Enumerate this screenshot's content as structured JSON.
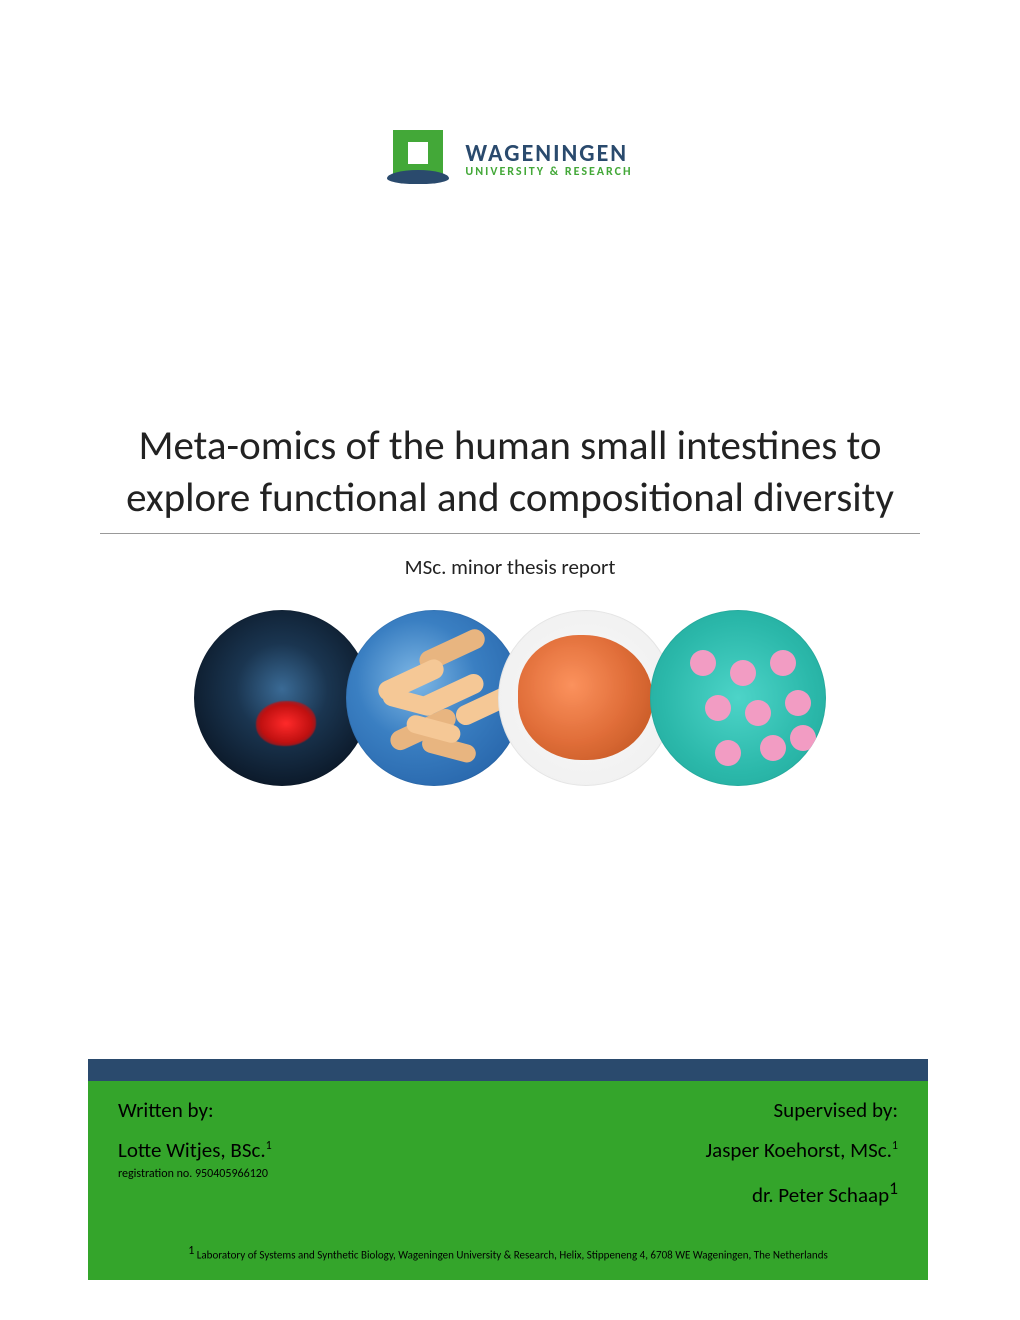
{
  "logo": {
    "name": "WAGENINGEN",
    "subline": "UNIVERSITY & RESEARCH",
    "name_color": "#2a4a6d",
    "sub_color": "#43a838",
    "mark_green": "#43a838",
    "mark_blue": "#2a4a6d"
  },
  "title": "Meta-omics of the human small intestines to explore functional and compositional diversity",
  "subtitle": "MSc. minor thesis report",
  "title_style": {
    "font_size_pt": 30,
    "font_weight": 300,
    "color": "#222222",
    "underline_color": "#999999"
  },
  "circles": [
    {
      "semantic": "torso-intestines-illustration",
      "palette": [
        "#0a1625",
        "#1a3550",
        "#3a6a95",
        "#ff2a2a"
      ]
    },
    {
      "semantic": "rod-bacteria-micrograph",
      "palette": [
        "#1f5aa0",
        "#3a7fc2",
        "#7fb8e6",
        "#f5c896"
      ]
    },
    {
      "semantic": "clustered-microbe-micrograph",
      "palette": [
        "#f0f0f0",
        "#f09060",
        "#d87040",
        "#b55525"
      ]
    },
    {
      "semantic": "cocci-on-teal-micrograph",
      "palette": [
        "#2bb8aa",
        "#4dd4c8",
        "#f29cc3"
      ]
    }
  ],
  "footer": {
    "band_color": "#34a52b",
    "top_bar_color": "#2a4a6d",
    "written_by_label": "Written by:",
    "author_name": "Lotte Witjes, BSc.",
    "author_sup": "1",
    "registration_label": "registration no. 950405966120",
    "supervised_by_label": "Supervised by:",
    "supervisor1": "Jasper Koehorst, MSc.",
    "supervisor1_sup": "1",
    "supervisor2": "dr. Peter Schaap",
    "supervisor2_sup": "1",
    "affiliation_sup": "1",
    "affiliation": " Laboratory of Systems and Synthetic Biology, Wageningen University & Research, Helix, Stippeneng 4, 6708 WE Wageningen, The Netherlands"
  }
}
